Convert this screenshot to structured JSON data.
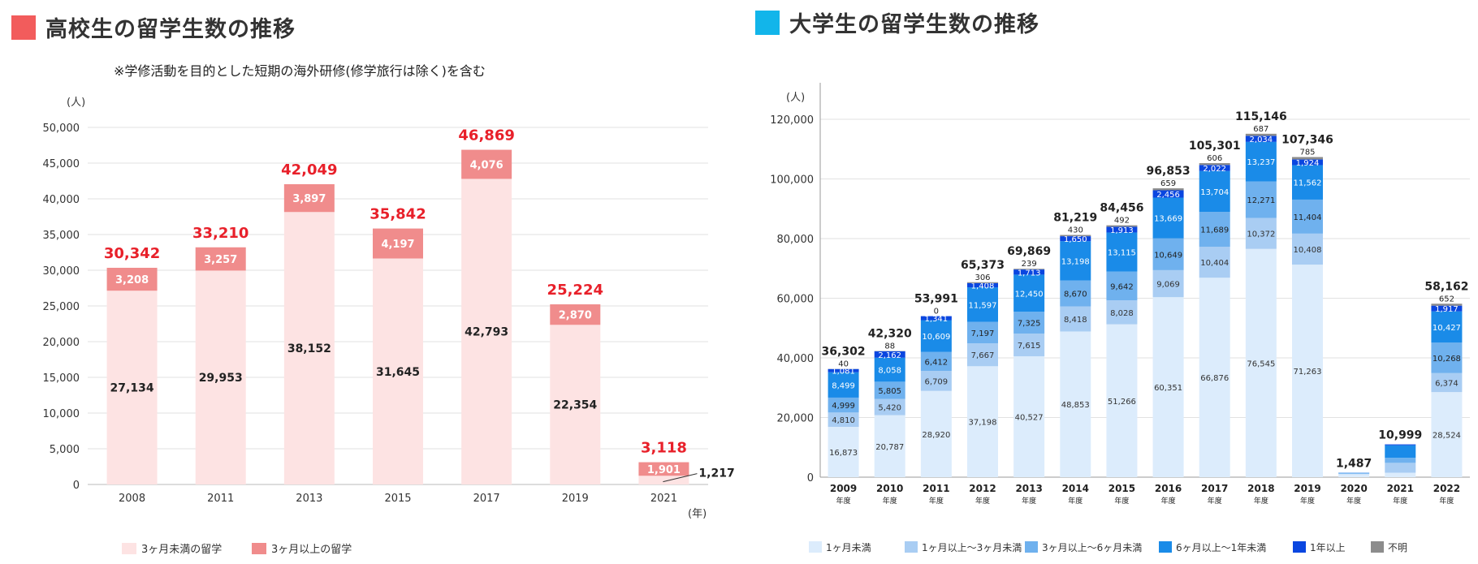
{
  "colors": {
    "hs_under3": "#fde3e3",
    "hs_over3": "#f08c8c",
    "hs_total": "#e8202a",
    "hs_title_square": "#f25c5c",
    "uni_title_square": "#12b5ea",
    "uni_series": [
      "#dcecfc",
      "#a9cdf3",
      "#6fb1ee",
      "#1a8be8",
      "#0a46e0",
      "#8c8c8c"
    ]
  },
  "left_panel": {
    "title": "高校生の留学生数の推移",
    "note": "※学修活動を目的とした短期の海外研修(修学旅行は除く)を含む"
  },
  "right_panel": {
    "title": "大学生の留学生数の推移"
  },
  "chart_data": [
    {
      "type": "bar",
      "stacked": true,
      "ylabel": "(人)",
      "xlabel": "(年)",
      "ylim": [
        0,
        50000
      ],
      "yticks": [
        "0",
        "5,000",
        "10,000",
        "15,000",
        "20,000",
        "25,000",
        "30,000",
        "35,000",
        "40,000",
        "45,000",
        "50,000"
      ],
      "categories": [
        "2008",
        "2011",
        "2013",
        "2015",
        "2017",
        "2019",
        "2021"
      ],
      "series": [
        {
          "name": "3ヶ月未満の留学",
          "values": [
            27134,
            29953,
            38152,
            31645,
            42793,
            22354,
            1217
          ],
          "labels": [
            "27,134",
            "29,953",
            "38,152",
            "31,645",
            "42,793",
            "22,354",
            "1,217"
          ]
        },
        {
          "name": "3ヶ月以上の留学",
          "values": [
            3208,
            3257,
            3897,
            4197,
            4076,
            2870,
            1901
          ],
          "labels": [
            "3,208",
            "3,257",
            "3,897",
            "4,197",
            "4,076",
            "2,870",
            "1,901"
          ]
        }
      ],
      "totals": [
        30342,
        33210,
        42049,
        35842,
        46869,
        25224,
        3118
      ],
      "total_labels": [
        "30,342",
        "33,210",
        "42,049",
        "35,842",
        "46,869",
        "25,224",
        "3,118"
      ],
      "legend": [
        "3ヶ月未満の留学",
        "3ヶ月以上の留学"
      ],
      "legend_position": "bottom-left"
    },
    {
      "type": "bar",
      "stacked": true,
      "ylabel": "(人)",
      "ylim": [
        0,
        120000
      ],
      "yticks": [
        "0",
        "20,000",
        "40,000",
        "60,000",
        "80,000",
        "100,000",
        "120,000"
      ],
      "categories": [
        "2009",
        "2010",
        "2011",
        "2012",
        "2013",
        "2014",
        "2015",
        "2016",
        "2017",
        "2018",
        "2019",
        "2020",
        "2021",
        "2022"
      ],
      "category_suffix": "年度",
      "series": [
        {
          "name": "1ヶ月未満",
          "values": [
            16873,
            20787,
            28920,
            37198,
            40527,
            48853,
            51266,
            60351,
            66876,
            76545,
            71263,
            1000,
            1500,
            28524
          ],
          "labels": [
            "16,873",
            "20,787",
            "28,920",
            "37,198",
            "40,527",
            "48,853",
            "51,266",
            "60,351",
            "66,876",
            "76,545",
            "71,263",
            "",
            "",
            "28,524"
          ]
        },
        {
          "name": "1ヶ月以上〜3ヶ月未満",
          "values": [
            4810,
            5420,
            6709,
            7667,
            7615,
            8418,
            8028,
            9069,
            10404,
            10372,
            10408,
            150,
            3300,
            6374
          ],
          "labels": [
            "4,810",
            "5,420",
            "6,709",
            "7,667",
            "7,615",
            "8,418",
            "8,028",
            "9,069",
            "10,404",
            "10,372",
            "10,408",
            "",
            "",
            "6,374"
          ]
        },
        {
          "name": "3ヶ月以上〜6ヶ月未満",
          "values": [
            4999,
            5805,
            6412,
            7197,
            7325,
            8670,
            9642,
            10649,
            11689,
            12271,
            11404,
            150,
            1700,
            10268
          ],
          "labels": [
            "4,999",
            "5,805",
            "6,412",
            "7,197",
            "7,325",
            "8,670",
            "9,642",
            "10,649",
            "11,689",
            "12,271",
            "11,404",
            "",
            "",
            "10,268"
          ]
        },
        {
          "name": "6ヶ月以上〜1年未満",
          "values": [
            8499,
            8058,
            10609,
            11597,
            12450,
            13198,
            13115,
            13669,
            13704,
            13237,
            11562,
            150,
            4200,
            10427
          ],
          "labels": [
            "8,499",
            "8,058",
            "10,609",
            "11,597",
            "12,450",
            "13,198",
            "13,115",
            "13,669",
            "13,704",
            "13,237",
            "11,562",
            "",
            "",
            "10,427"
          ]
        },
        {
          "name": "1年以上",
          "values": [
            1081,
            2162,
            1341,
            1408,
            1713,
            1650,
            1913,
            2456,
            2022,
            2034,
            1924,
            37,
            299,
            1917
          ],
          "labels": [
            "1,081",
            "2,162",
            "1,341",
            "1,408",
            "1,713",
            "1,650",
            "1,913",
            "2,456",
            "2,022",
            "2,034",
            "1,924",
            "",
            "",
            "1,917"
          ]
        },
        {
          "name": "不明",
          "values": [
            40,
            88,
            0,
            306,
            239,
            430,
            492,
            659,
            606,
            687,
            785,
            0,
            0,
            652
          ],
          "labels": [
            "40",
            "88",
            "0",
            "306",
            "239",
            "430",
            "492",
            "659",
            "606",
            "687",
            "785",
            "",
            "",
            "652"
          ]
        }
      ],
      "totals": [
        36302,
        42320,
        53991,
        65373,
        69869,
        81219,
        84456,
        96853,
        105301,
        115146,
        107346,
        1487,
        10999,
        58162
      ],
      "total_labels": [
        "36,302",
        "42,320",
        "53,991",
        "65,373",
        "69,869",
        "81,219",
        "84,456",
        "96,853",
        "105,301",
        "115,146",
        "107,346",
        "1,487",
        "10,999",
        "58,162"
      ],
      "legend": [
        "1ヶ月未満",
        "1ヶ月以上〜3ヶ月未満",
        "3ヶ月以上〜6ヶ月未満",
        "6ヶ月以上〜1年未満",
        "1年以上",
        "不明"
      ],
      "legend_position": "bottom"
    }
  ]
}
